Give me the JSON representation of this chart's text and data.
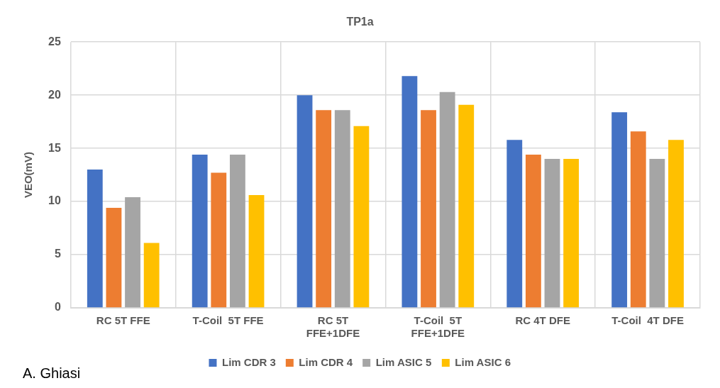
{
  "chart_data": {
    "type": "bar",
    "title": "TP1a",
    "ylabel": "VEO(mV)",
    "categories": [
      "RC 5T FFE",
      "T-Coil  5T FFE",
      "RC 5T\nFFE+1DFE",
      "T-Coil  5T\nFFE+1DFE",
      "RC 4T DFE",
      "T-Coil  4T DFE"
    ],
    "series": [
      {
        "name": "Lim CDR 3",
        "color": "#4472c4",
        "values": [
          13.0,
          14.4,
          20.0,
          21.8,
          15.8,
          18.4
        ]
      },
      {
        "name": "Lim CDR 4",
        "color": "#ed7d31",
        "values": [
          9.4,
          12.7,
          18.6,
          18.6,
          14.4,
          16.6
        ]
      },
      {
        "name": "Lim ASIC 5",
        "color": "#a5a5a5",
        "values": [
          10.4,
          14.4,
          18.6,
          20.3,
          14.0,
          14.0
        ]
      },
      {
        "name": "Lim ASIC 6",
        "color": "#ffc000",
        "values": [
          6.1,
          10.6,
          17.1,
          19.1,
          14.0,
          15.8
        ]
      }
    ],
    "ylim": [
      0,
      25
    ],
    "yticks": [
      0,
      5,
      10,
      15,
      20,
      25
    ],
    "grid": true,
    "legend": "bottom",
    "annotations": [
      "A. Ghiasi"
    ]
  }
}
